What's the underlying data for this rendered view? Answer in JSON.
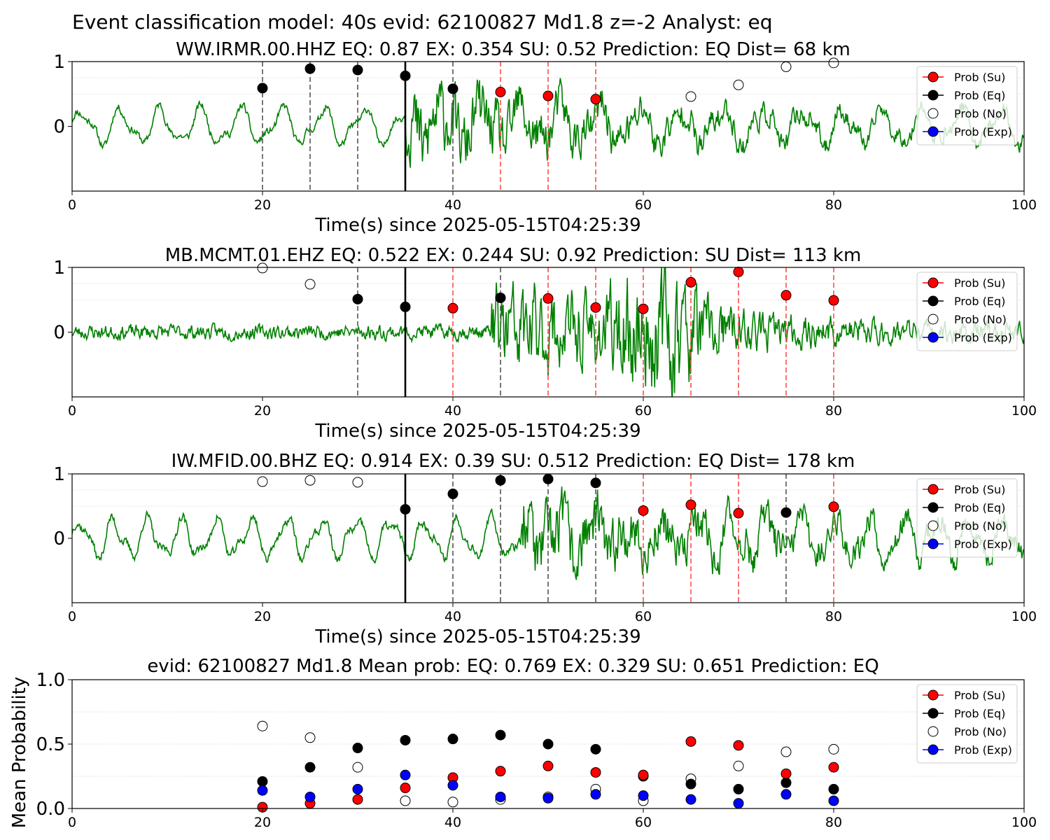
{
  "suptitle": "Event classification model: 40s evid: 62100827 Md1.8 z=-2 Analyst: eq",
  "colors": {
    "waveform": "#008000",
    "su": "#ff0000",
    "eq": "#000000",
    "no": "#ffffff",
    "exp": "#0000ff",
    "su_line": "#ff4d4d",
    "eq_line": "#555555",
    "pick_line": "#000000"
  },
  "legend": [
    {
      "key": "su",
      "label": "Prob (Su)"
    },
    {
      "key": "eq",
      "label": "Prob (Eq)"
    },
    {
      "key": "no",
      "label": "Prob (No)"
    },
    {
      "key": "exp",
      "label": "Prob (Exp)"
    }
  ],
  "chart_data": [
    {
      "type": "scatter",
      "title": "WW.IRMR.00.HHZ   EQ: 0.87  EX: 0.354  SU: 0.52   Prediction: EQ    Dist= 68 km",
      "xlabel": "Time(s) since 2025-05-15T04:25:39",
      "ylabel": "",
      "xlim": [
        0,
        100
      ],
      "ylim": [
        -1,
        1
      ],
      "xticks": [
        0,
        20,
        40,
        60,
        80,
        100
      ],
      "yticks": [
        0,
        1
      ],
      "pick_time": 35,
      "waveform": {
        "seed": 11,
        "long_period": 4.2,
        "long_amp": 0.24,
        "noise_base": 0.05,
        "onset": 35,
        "peak_amp": 0.45,
        "decay": 25
      },
      "windows": [
        20,
        25,
        30,
        35,
        40,
        45,
        50,
        55
      ],
      "window_classes": [
        "eq",
        "eq",
        "eq",
        "eq",
        "eq",
        "su",
        "su",
        "su"
      ],
      "series": [
        {
          "name": "Prob (Eq)",
          "key": "eq",
          "points": [
            [
              20,
              0.59
            ],
            [
              25,
              0.89
            ],
            [
              30,
              0.87
            ],
            [
              35,
              0.78
            ],
            [
              40,
              0.58
            ]
          ]
        },
        {
          "name": "Prob (Su)",
          "key": "su",
          "points": [
            [
              45,
              0.53
            ],
            [
              50,
              0.47
            ],
            [
              55,
              0.42
            ]
          ]
        },
        {
          "name": "Prob (No)",
          "key": "no",
          "points": [
            [
              65,
              0.46
            ],
            [
              70,
              0.64
            ],
            [
              75,
              0.92
            ],
            [
              80,
              0.98
            ]
          ]
        },
        {
          "name": "Prob (Exp)",
          "key": "exp",
          "points": []
        }
      ]
    },
    {
      "type": "scatter",
      "title": "MB.MCMT.01.EHZ   EQ: 0.522  EX: 0.244  SU: 0.92   Prediction: SU    Dist= 113 km",
      "xlabel": "Time(s) since 2025-05-15T04:25:39",
      "ylabel": "",
      "xlim": [
        0,
        100
      ],
      "ylim": [
        -1,
        1
      ],
      "xticks": [
        0,
        20,
        40,
        60,
        80,
        100
      ],
      "yticks": [
        0,
        1
      ],
      "pick_time": 35,
      "waveform": {
        "seed": 23,
        "long_period": 0,
        "long_amp": 0.0,
        "noise_base": 0.09,
        "onset": 44,
        "peak_amp": 0.55,
        "decay": 20,
        "bump_center": 62,
        "bump_amp": 0.45,
        "bump_width": 5
      },
      "windows": [
        30,
        35,
        40,
        45,
        50,
        55,
        60,
        65,
        70,
        75,
        80
      ],
      "window_classes": [
        "eq",
        "eq",
        "su",
        "eq",
        "su",
        "su",
        "su",
        "su",
        "su",
        "su",
        "su"
      ],
      "series": [
        {
          "name": "Prob (No)",
          "key": "no",
          "points": [
            [
              20,
              0.99
            ],
            [
              25,
              0.74
            ]
          ]
        },
        {
          "name": "Prob (Eq)",
          "key": "eq",
          "points": [
            [
              30,
              0.51
            ],
            [
              35,
              0.39
            ],
            [
              45,
              0.53
            ]
          ]
        },
        {
          "name": "Prob (Su)",
          "key": "su",
          "points": [
            [
              40,
              0.37
            ],
            [
              50,
              0.52
            ],
            [
              55,
              0.38
            ],
            [
              60,
              0.36
            ],
            [
              65,
              0.77
            ],
            [
              70,
              0.93
            ],
            [
              75,
              0.57
            ],
            [
              80,
              0.49
            ]
          ]
        },
        {
          "name": "Prob (Exp)",
          "key": "exp",
          "points": []
        }
      ]
    },
    {
      "type": "scatter",
      "title": "IW.MFID.00.BHZ   EQ: 0.914  EX: 0.39  SU: 0.512   Prediction: EQ    Dist= 178 km",
      "xlabel": "Time(s) since 2025-05-15T04:25:39",
      "ylabel": "",
      "xlim": [
        0,
        100
      ],
      "ylim": [
        -1,
        1
      ],
      "xticks": [
        0,
        20,
        40,
        60,
        80,
        100
      ],
      "yticks": [
        0,
        1
      ],
      "pick_time": 35,
      "waveform": {
        "seed": 37,
        "long_period": 3.6,
        "long_amp": 0.26,
        "noise_base": 0.06,
        "onset": 47,
        "peak_amp": 0.4,
        "decay": 30
      },
      "windows": [
        40,
        45,
        50,
        55,
        60,
        65,
        70,
        75,
        80
      ],
      "window_classes": [
        "eq",
        "eq",
        "eq",
        "eq",
        "su",
        "su",
        "su",
        "eq",
        "su"
      ],
      "series": [
        {
          "name": "Prob (No)",
          "key": "no",
          "points": [
            [
              20,
              0.88
            ],
            [
              25,
              0.9
            ],
            [
              30,
              0.87
            ]
          ]
        },
        {
          "name": "Prob (Eq)",
          "key": "eq",
          "points": [
            [
              35,
              0.45
            ],
            [
              40,
              0.69
            ],
            [
              45,
              0.9
            ],
            [
              50,
              0.92
            ],
            [
              55,
              0.86
            ],
            [
              75,
              0.4
            ]
          ]
        },
        {
          "name": "Prob (Su)",
          "key": "su",
          "points": [
            [
              60,
              0.43
            ],
            [
              65,
              0.52
            ],
            [
              70,
              0.39
            ],
            [
              80,
              0.49
            ]
          ]
        },
        {
          "name": "Prob (Exp)",
          "key": "exp",
          "points": []
        }
      ]
    },
    {
      "type": "scatter",
      "title": "evid: 62100827  Md1.8   Mean prob:   EQ: 0.769  EX: 0.329  SU: 0.651   Prediction: EQ",
      "xlabel": "",
      "ylabel": "Mean Probability",
      "xlim": [
        0,
        100
      ],
      "ylim": [
        0,
        1
      ],
      "xticks": [
        0,
        20,
        40,
        60,
        80,
        100
      ],
      "yticks": [
        0.0,
        0.5,
        1.0
      ],
      "series": [
        {
          "name": "Prob (No)",
          "key": "no",
          "points": [
            [
              20,
              0.64
            ],
            [
              25,
              0.55
            ],
            [
              30,
              0.32
            ],
            [
              35,
              0.06
            ],
            [
              40,
              0.05
            ],
            [
              45,
              0.07
            ],
            [
              50,
              0.09
            ],
            [
              55,
              0.15
            ],
            [
              60,
              0.06
            ],
            [
              65,
              0.23
            ],
            [
              70,
              0.33
            ],
            [
              75,
              0.44
            ],
            [
              80,
              0.46
            ]
          ]
        },
        {
          "name": "Prob (Eq)",
          "key": "eq",
          "points": [
            [
              20,
              0.21
            ],
            [
              25,
              0.32
            ],
            [
              30,
              0.47
            ],
            [
              35,
              0.53
            ],
            [
              40,
              0.54
            ],
            [
              45,
              0.57
            ],
            [
              50,
              0.5
            ],
            [
              55,
              0.46
            ],
            [
              60,
              0.25
            ],
            [
              65,
              0.19
            ],
            [
              70,
              0.15
            ],
            [
              75,
              0.2
            ],
            [
              80,
              0.15
            ]
          ]
        },
        {
          "name": "Prob (Su)",
          "key": "su",
          "points": [
            [
              20,
              0.01
            ],
            [
              25,
              0.04
            ],
            [
              30,
              0.07
            ],
            [
              35,
              0.16
            ],
            [
              40,
              0.24
            ],
            [
              45,
              0.29
            ],
            [
              50,
              0.33
            ],
            [
              55,
              0.28
            ],
            [
              60,
              0.26
            ],
            [
              65,
              0.52
            ],
            [
              70,
              0.49
            ],
            [
              75,
              0.27
            ],
            [
              80,
              0.32
            ]
          ]
        },
        {
          "name": "Prob (Exp)",
          "key": "exp",
          "points": [
            [
              20,
              0.14
            ],
            [
              25,
              0.09
            ],
            [
              30,
              0.15
            ],
            [
              35,
              0.26
            ],
            [
              40,
              0.18
            ],
            [
              45,
              0.09
            ],
            [
              50,
              0.08
            ],
            [
              55,
              0.11
            ],
            [
              60,
              0.1
            ],
            [
              65,
              0.07
            ],
            [
              70,
              0.04
            ],
            [
              75,
              0.11
            ],
            [
              80,
              0.06
            ]
          ]
        }
      ]
    }
  ]
}
